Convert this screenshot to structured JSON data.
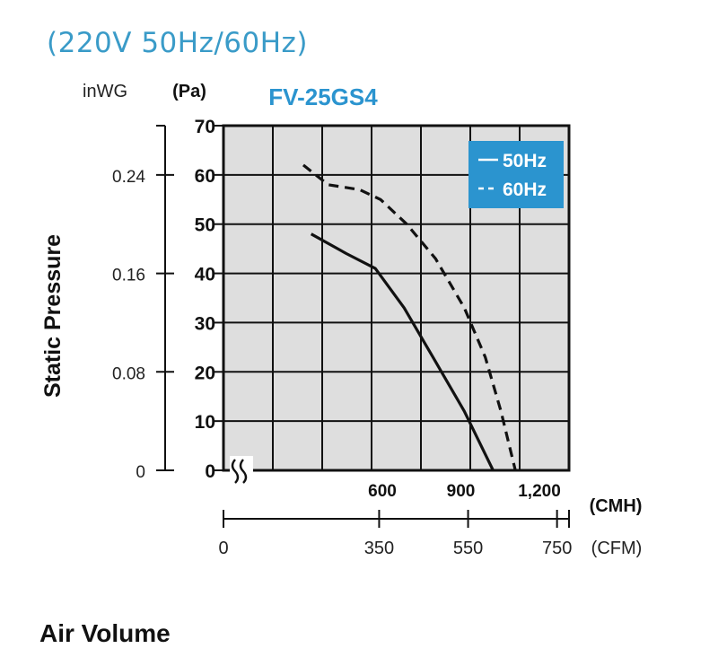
{
  "header": {
    "condition": "(220V 50Hz/60Hz)"
  },
  "chart_data": {
    "type": "line",
    "title": "FV-25GS4",
    "ylabel": "Static Pressure",
    "xlabel": "Air Volume",
    "y_unit_pa": "(Pa)",
    "y_unit_inwg": "inWG",
    "x_unit_cmh": "(CMH)",
    "x_unit_cfm": "(CFM)",
    "ylim": [
      0,
      70
    ],
    "xlim": [
      0,
      1320
    ],
    "y_ticks_pa": [
      "0",
      "10",
      "20",
      "30",
      "40",
      "50",
      "60",
      "70"
    ],
    "y_ticks_inwg": [
      {
        "label": "0",
        "pa": 0
      },
      {
        "label": "0.08",
        "pa": 20
      },
      {
        "label": "0.16",
        "pa": 40
      },
      {
        "label": "0.24",
        "pa": 60
      }
    ],
    "x_ticks_cmh": [
      {
        "label": "600",
        "cmh": 600
      },
      {
        "label": "900",
        "cmh": 900
      },
      {
        "label": "1,200",
        "cmh": 1200
      }
    ],
    "x_ticks_cfm": [
      {
        "label": "0",
        "cfm": 0
      },
      {
        "label": "350",
        "cfm": 350
      },
      {
        "label": "550",
        "cfm": 550
      },
      {
        "label": "750",
        "cfm": 750
      }
    ],
    "grid": true,
    "legend_position": "top-right",
    "legend_bg": "#2b94cf",
    "plot_bg": "#dedede",
    "series": [
      {
        "name": "50Hz",
        "style": "solid",
        "points": [
          [
            335,
            48
          ],
          [
            470,
            44
          ],
          [
            580,
            41
          ],
          [
            690,
            33
          ],
          [
            800,
            23
          ],
          [
            920,
            12
          ],
          [
            1030,
            0
          ]
        ]
      },
      {
        "name": "60Hz",
        "style": "dashed",
        "points": [
          [
            305,
            62
          ],
          [
            400,
            58
          ],
          [
            520,
            57
          ],
          [
            600,
            55
          ],
          [
            700,
            50
          ],
          [
            810,
            43
          ],
          [
            920,
            33
          ],
          [
            1000,
            23
          ],
          [
            1060,
            12
          ],
          [
            1115,
            0
          ]
        ]
      }
    ]
  }
}
